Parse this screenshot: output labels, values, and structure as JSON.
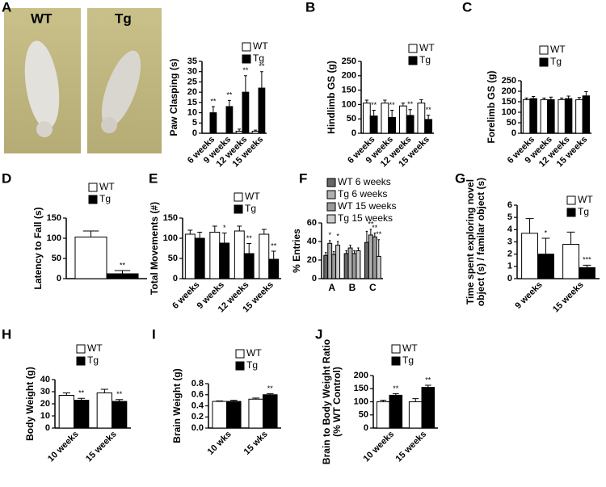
{
  "photos": {
    "labels": [
      "WT",
      "Tg"
    ]
  },
  "chart_data": [
    {
      "type": "bar",
      "panel": "A",
      "ylabel": [
        "Paw Clasping (s)"
      ],
      "categories": [
        "6 weeks",
        "9 weeks",
        "12 weeks",
        "15 weeks"
      ],
      "ylim": [
        0,
        35
      ],
      "yticks": [
        0,
        5,
        10,
        15,
        20,
        25,
        30,
        35
      ],
      "series": [
        {
          "name": "WT",
          "color": "#ffffff",
          "values": [
            0,
            0,
            1,
            1
          ],
          "errors": [
            0,
            0,
            1,
            0.5
          ]
        },
        {
          "name": "Tg",
          "color": "#000000",
          "values": [
            10,
            13,
            20,
            22
          ],
          "errors": [
            3,
            3,
            8,
            8
          ],
          "stars": [
            "**",
            "**",
            "**",
            "**"
          ]
        }
      ]
    },
    {
      "type": "bar",
      "panel": "B",
      "ylabel": [
        "Hindlimb GS (g)"
      ],
      "categories": [
        "6 weeks",
        "9 weeks",
        "12 weeks",
        "15 weeks"
      ],
      "ylim": [
        0,
        250
      ],
      "yticks": [
        0,
        50,
        100,
        150,
        200,
        250
      ],
      "series": [
        {
          "name": "WT",
          "color": "#ffffff",
          "values": [
            105,
            105,
            95,
            105
          ],
          "errors": [
            10,
            10,
            10,
            12
          ]
        },
        {
          "name": "Tg",
          "color": "#000000",
          "values": [
            60,
            55,
            62,
            48
          ],
          "errors": [
            20,
            25,
            20,
            15
          ],
          "stars": [
            "**",
            "**",
            "**",
            "**"
          ]
        }
      ]
    },
    {
      "type": "bar",
      "panel": "C",
      "ylabel": [
        "Forelimb GS (g)"
      ],
      "categories": [
        "6 weeks",
        "9 weeks",
        "12 weeks",
        "15 weeks"
      ],
      "ylim": [
        0,
        250
      ],
      "yticks": [
        0,
        50,
        100,
        150,
        200,
        250
      ],
      "series": [
        {
          "name": "WT",
          "color": "#ffffff",
          "values": [
            160,
            160,
            160,
            160
          ],
          "errors": [
            8,
            8,
            8,
            10
          ]
        },
        {
          "name": "Tg",
          "color": "#000000",
          "values": [
            165,
            160,
            165,
            178
          ],
          "errors": [
            10,
            12,
            12,
            20
          ]
        }
      ]
    },
    {
      "type": "bar",
      "panel": "D",
      "ylabel": [
        "Latency to  Fall (s)"
      ],
      "categories": [
        null
      ],
      "ylim": [
        0,
        150
      ],
      "yticks": [
        0,
        50,
        100,
        150
      ],
      "series": [
        {
          "name": "WT",
          "color": "#ffffff",
          "values": [
            103
          ],
          "errors": [
            15
          ]
        },
        {
          "name": "Tg",
          "color": "#000000",
          "values": [
            12
          ],
          "errors": [
            8
          ],
          "stars": [
            "**"
          ]
        }
      ]
    },
    {
      "type": "bar",
      "panel": "E",
      "ylabel": [
        "Total  Movements (#)"
      ],
      "categories": [
        "6 weeks",
        "9 weeks",
        "12 weeks",
        "15 weeks"
      ],
      "ylim": [
        0,
        150
      ],
      "yticks": [
        0,
        50,
        100,
        150
      ],
      "series": [
        {
          "name": "WT",
          "color": "#ffffff",
          "values": [
            110,
            115,
            118,
            110
          ],
          "errors": [
            10,
            15,
            12,
            12
          ]
        },
        {
          "name": "Tg",
          "color": "#000000",
          "values": [
            100,
            88,
            62,
            48
          ],
          "errors": [
            15,
            25,
            25,
            20
          ],
          "stars": [
            null,
            "*",
            "**",
            "**"
          ]
        }
      ]
    },
    {
      "type": "bar",
      "panel": "F",
      "ylabel": [
        "% Entries"
      ],
      "categories": [
        "A",
        "B",
        "C"
      ],
      "ylim": [
        0,
        60
      ],
      "yticks": [
        0,
        20,
        40,
        60
      ],
      "series": [
        {
          "name": "WT 6 weeks",
          "color": "#666666",
          "values": [
            25,
            27,
            39
          ],
          "errors": [
            3,
            3,
            12
          ]
        },
        {
          "name": "Tg 6 weeks",
          "color": "#b0b0b0",
          "values": [
            38,
            33,
            47
          ],
          "errors": [
            3,
            3,
            6
          ],
          "stars": [
            "*",
            null,
            "**"
          ]
        },
        {
          "name": "WT 15 weeks",
          "color": "#999999",
          "values": [
            26,
            27,
            45
          ],
          "errors": [
            3,
            3,
            4
          ],
          "stars": [
            null,
            null,
            "**"
          ]
        },
        {
          "name": "Tg 15 weeks",
          "color": "#cccccc",
          "values": [
            36,
            30,
            24
          ],
          "errors": [
            4,
            3,
            18
          ],
          "stars": [
            "*",
            null,
            "**"
          ]
        }
      ]
    },
    {
      "type": "bar",
      "panel": "G",
      "ylabel": [
        "Time spent exploring novel",
        "object (s) / familar object (s)"
      ],
      "categories": [
        "9 weeks",
        "15 weeks"
      ],
      "ylim": [
        0,
        6
      ],
      "yticks": [
        0,
        1,
        2,
        3,
        4,
        5,
        6
      ],
      "series": [
        {
          "name": "WT",
          "color": "#ffffff",
          "values": [
            3.7,
            2.8
          ],
          "errors": [
            1.2,
            1.0
          ]
        },
        {
          "name": "Tg",
          "color": "#000000",
          "values": [
            2.0,
            0.9
          ],
          "errors": [
            1.3,
            0.2
          ],
          "stars": [
            "*",
            "***"
          ]
        }
      ]
    },
    {
      "type": "bar",
      "panel": "H",
      "ylabel": [
        "Body  Weight (g)"
      ],
      "categories": [
        "10 weeks",
        "15 weeks"
      ],
      "ylim": [
        0,
        40
      ],
      "yticks": [
        0,
        10,
        20,
        30,
        40
      ],
      "series": [
        {
          "name": "WT",
          "color": "#ffffff",
          "values": [
            27,
            29
          ],
          "errors": [
            2,
            3
          ]
        },
        {
          "name": "Tg",
          "color": "#000000",
          "values": [
            23,
            22
          ],
          "errors": [
            1.5,
            1.5
          ],
          "stars": [
            "**",
            "**"
          ]
        }
      ]
    },
    {
      "type": "bar",
      "panel": "I",
      "ylabel": [
        "Brain Weight (g)"
      ],
      "categories": [
        "10 wks",
        "15 wks"
      ],
      "ylim": [
        0,
        0.8
      ],
      "yticks": [
        {
          "value": 0,
          "label": "0.0"
        },
        0.2,
        0.4,
        0.6,
        0.8
      ],
      "series": [
        {
          "name": "WT",
          "color": "#ffffff",
          "values": [
            0.48,
            0.52
          ],
          "errors": [
            0.01,
            0.02
          ]
        },
        {
          "name": "Tg",
          "color": "#000000",
          "values": [
            0.48,
            0.6
          ],
          "errors": [
            0.02,
            0.02
          ],
          "stars": [
            null,
            "**"
          ]
        }
      ]
    },
    {
      "type": "bar",
      "panel": "J",
      "ylabel": [
        "Brain to  Body  Weight  Ratio",
        "(% WT Control)"
      ],
      "categories": [
        "10 weeks",
        "15 weeks"
      ],
      "ylim": [
        0,
        200
      ],
      "yticks": [
        0,
        50,
        100,
        150,
        200
      ],
      "series": [
        {
          "name": "WT",
          "color": "#ffffff",
          "values": [
            100,
            100
          ],
          "errors": [
            6,
            12
          ]
        },
        {
          "name": "Tg",
          "color": "#000000",
          "values": [
            125,
            155
          ],
          "errors": [
            6,
            8
          ],
          "stars": [
            "**",
            "**"
          ]
        }
      ]
    }
  ]
}
